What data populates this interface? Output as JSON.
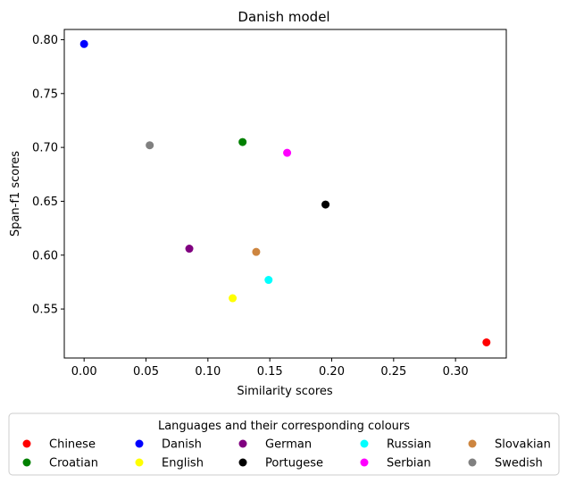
{
  "chart_data": {
    "type": "scatter",
    "title": "Danish model",
    "xlabel": "Similarity scores",
    "ylabel": "Span-f1 scores",
    "xlim": [
      -0.016,
      0.341
    ],
    "ylim": [
      0.5045,
      0.8095
    ],
    "xticks": [
      0.0,
      0.05,
      0.1,
      0.15,
      0.2,
      0.25,
      0.3
    ],
    "xtick_labels": [
      "0.00",
      "0.05",
      "0.10",
      "0.15",
      "0.20",
      "0.25",
      "0.30"
    ],
    "yticks": [
      0.55,
      0.6,
      0.65,
      0.7,
      0.75,
      0.8
    ],
    "ytick_labels": [
      "0.55",
      "0.60",
      "0.65",
      "0.70",
      "0.75",
      "0.80"
    ],
    "grid": false,
    "legend": {
      "title": "Languages and their corresponding colours",
      "placement": "below-plot",
      "columns": 5
    },
    "series": [
      {
        "name": "Chinese",
        "color": "#ff0000",
        "x": 0.325,
        "y": 0.519
      },
      {
        "name": "Croatian",
        "color": "#008000",
        "x": 0.128,
        "y": 0.705
      },
      {
        "name": "Danish",
        "color": "#0000ff",
        "x": 0.0,
        "y": 0.796
      },
      {
        "name": "English",
        "color": "#ffff00",
        "x": 0.12,
        "y": 0.56
      },
      {
        "name": "German",
        "color": "#800080",
        "x": 0.085,
        "y": 0.606
      },
      {
        "name": "Portugese",
        "color": "#000000",
        "x": 0.195,
        "y": 0.647
      },
      {
        "name": "Russian",
        "color": "#00ffff",
        "x": 0.149,
        "y": 0.577
      },
      {
        "name": "Serbian",
        "color": "#ff00ff",
        "x": 0.164,
        "y": 0.695
      },
      {
        "name": "Slovakian",
        "color": "#cd853f",
        "x": 0.139,
        "y": 0.603
      },
      {
        "name": "Swedish",
        "color": "#808080",
        "x": 0.053,
        "y": 0.702
      }
    ]
  }
}
